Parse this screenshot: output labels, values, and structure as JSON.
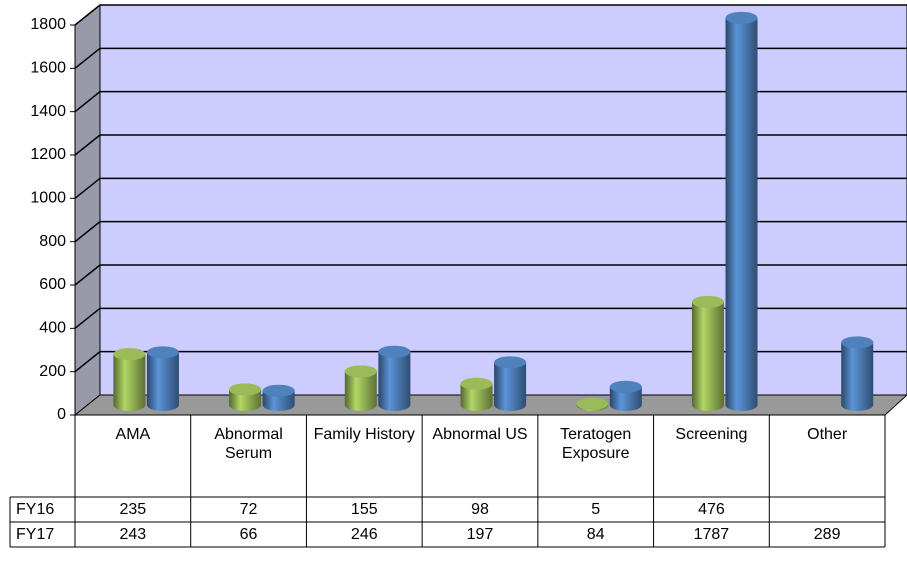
{
  "chart_data": {
    "type": "bar",
    "categories": [
      "AMA",
      "Abnormal Serum",
      "Family History",
      "Abnormal US",
      "Teratogen Exposure",
      "Screening",
      "Other"
    ],
    "series": [
      {
        "name": "FY16",
        "color": "#9bbb59",
        "values": [
          235,
          72,
          155,
          98,
          5,
          476,
          null
        ]
      },
      {
        "name": "FY17",
        "color": "#4f81bd",
        "values": [
          243,
          66,
          246,
          197,
          84,
          1787,
          289
        ]
      }
    ],
    "ylim": [
      0,
      1800
    ],
    "yticks": [
      0,
      200,
      400,
      600,
      800,
      1000,
      1200,
      1400,
      1600,
      1800
    ],
    "grid": true
  }
}
